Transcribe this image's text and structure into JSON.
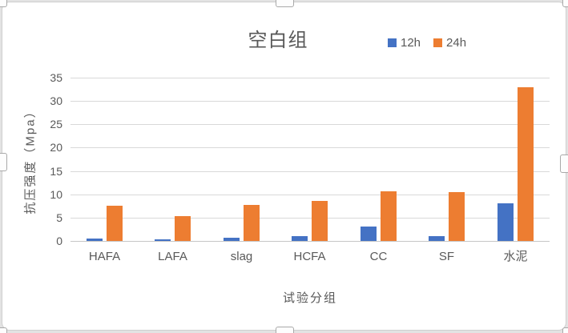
{
  "chart_data": {
    "type": "bar",
    "title": "空白组",
    "categories": [
      "HAFA",
      "LAFA",
      "slag",
      "HCFA",
      "CC",
      "SF",
      "水泥"
    ],
    "series": [
      {
        "name": "12h",
        "color": "#4472C4",
        "values": [
          0.6,
          0.4,
          0.7,
          1.0,
          3.1,
          1.0,
          8.0
        ]
      },
      {
        "name": "24h",
        "color": "#ED7D31",
        "values": [
          7.5,
          5.3,
          7.8,
          8.6,
          10.7,
          10.4,
          32.9
        ]
      }
    ],
    "xlabel": "试验分组",
    "ylabel": "抗压强度（Mpa）",
    "ylim": [
      0,
      35
    ],
    "yticks": [
      0,
      5,
      10,
      15,
      20,
      25,
      30,
      35
    ],
    "grid": true,
    "legend_position": "top-right"
  },
  "colors": {
    "series_12h": "#4472C4",
    "series_24h": "#ED7D31",
    "gridline": "#D9D9D9",
    "axis_line": "#C6C6C6",
    "text": "#595959",
    "frame_border": "#CFCFCF",
    "page_background": "#E3E3E3"
  },
  "selection": {
    "chart_selected": true
  }
}
